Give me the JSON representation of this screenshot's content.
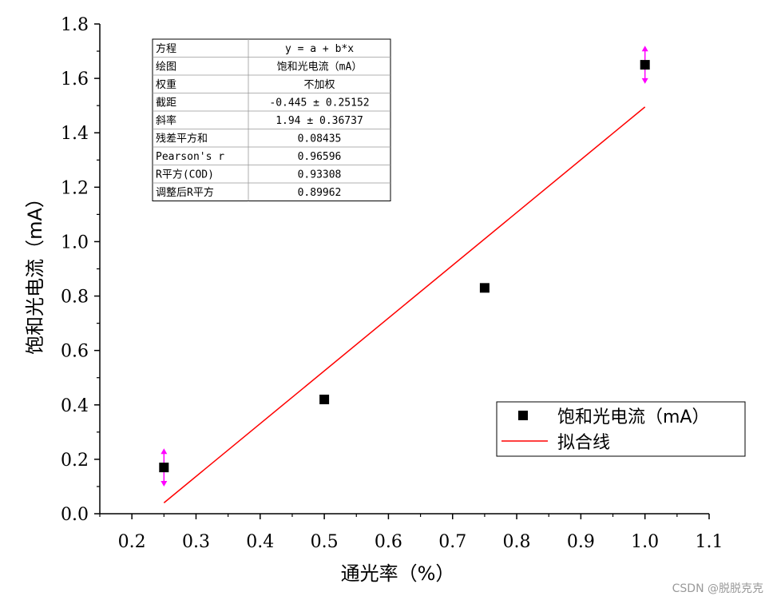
{
  "chart_data": {
    "type": "scatter",
    "xlabel": "通光率（%）",
    "ylabel": "饱和光电流（mA）",
    "xlim": [
      0.15,
      1.1
    ],
    "ylim": [
      0.0,
      1.8
    ],
    "xticks": [
      "0.2",
      "0.3",
      "0.4",
      "0.5",
      "0.6",
      "0.7",
      "0.8",
      "0.9",
      "1.0",
      "1.1"
    ],
    "yticks": [
      "0.0",
      "0.2",
      "0.4",
      "0.6",
      "0.8",
      "1.0",
      "1.2",
      "1.4",
      "1.6",
      "1.8"
    ],
    "series": [
      {
        "name": "饱和光电流（mA）",
        "marker": "square",
        "color": "#000000",
        "points": [
          {
            "x": 0.25,
            "y": 0.17
          },
          {
            "x": 0.5,
            "y": 0.42
          },
          {
            "x": 0.75,
            "y": 0.83
          },
          {
            "x": 1.0,
            "y": 1.65
          }
        ],
        "error_bars": [
          {
            "x": 0.25,
            "low": 0.1,
            "high": 0.24
          },
          {
            "x": 1.0,
            "low": 1.58,
            "high": 1.72
          }
        ],
        "error_color": "#ff00ff"
      },
      {
        "name": "拟合线",
        "type": "line",
        "color": "#ff0000",
        "intercept": -0.445,
        "slope": 1.94,
        "x_range": [
          0.25,
          1.0
        ]
      }
    ],
    "legend_position": "bottom-right",
    "fit_table": [
      [
        "方程",
        "y = a + b*x"
      ],
      [
        "绘图",
        "饱和光电流（mA）"
      ],
      [
        "权重",
        "不加权"
      ],
      [
        "截距",
        "-0.445 ± 0.25152"
      ],
      [
        "斜率",
        "1.94 ± 0.36737"
      ],
      [
        "残差平方和",
        "0.08435"
      ],
      [
        "Pearson's r",
        "0.96596"
      ],
      [
        "R平方(COD)",
        "0.93308"
      ],
      [
        "调整后R平方",
        "0.89962"
      ]
    ]
  },
  "watermark": "CSDN @脱脱克克"
}
